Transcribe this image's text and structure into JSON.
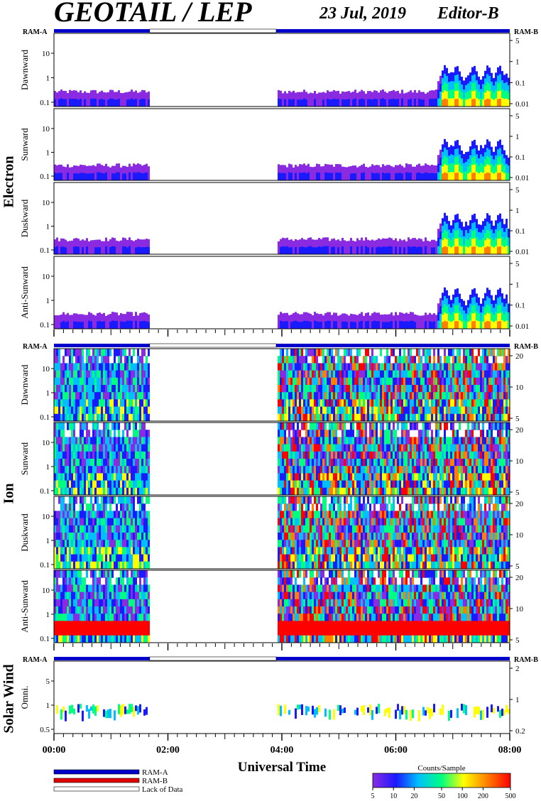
{
  "header": {
    "title": "GEOTAIL / LEP",
    "date": "23 Jul, 2019",
    "editor": "Editor-B"
  },
  "status_labels": {
    "left": "RAM-A",
    "right": "RAM-B"
  },
  "groups": [
    {
      "label": "Electron"
    },
    {
      "label": "Ion"
    },
    {
      "label": "Solar Wind"
    }
  ],
  "panels": [
    {
      "id": "e-dawn",
      "group": "Electron",
      "label": "Dawnward",
      "left_ticks": [
        "10",
        "1",
        "0.1"
      ],
      "right_ticks": [
        "5",
        "1",
        "0.1",
        "0.01"
      ]
    },
    {
      "id": "e-sun",
      "group": "Electron",
      "label": "Sunward",
      "left_ticks": [
        "10",
        "1",
        "0.1"
      ],
      "right_ticks": [
        "5",
        "1",
        "0.1",
        "0.01"
      ]
    },
    {
      "id": "e-dusk",
      "group": "Electron",
      "label": "Duskward",
      "left_ticks": [
        "10",
        "1",
        "0.1"
      ],
      "right_ticks": [
        "5",
        "1",
        "0.1",
        "0.01"
      ]
    },
    {
      "id": "e-anti",
      "group": "Electron",
      "label": "Anti-Sunward",
      "left_ticks": [
        "10",
        "1",
        "0.1"
      ],
      "right_ticks": [
        "5",
        "1",
        "0.1",
        "0.01"
      ]
    },
    {
      "id": "i-dawn",
      "group": "Ion",
      "label": "Dawnward",
      "left_ticks": [
        "10",
        "1",
        "0.1"
      ],
      "right_ticks": [
        "20",
        "10",
        "5"
      ]
    },
    {
      "id": "i-sun",
      "group": "Ion",
      "label": "Sunward",
      "left_ticks": [
        "10",
        "1",
        "0.1"
      ],
      "right_ticks": [
        "20",
        "10",
        "5"
      ]
    },
    {
      "id": "i-dusk",
      "group": "Ion",
      "label": "Duskward",
      "left_ticks": [
        "10",
        "1",
        "0.1"
      ],
      "right_ticks": [
        "20",
        "10",
        "5"
      ]
    },
    {
      "id": "i-anti",
      "group": "Ion",
      "label": "Anti-Sunward",
      "left_ticks": [
        "10",
        "1",
        "0.1"
      ],
      "right_ticks": [
        "20",
        "10",
        "5"
      ]
    },
    {
      "id": "sw-omni",
      "group": "Solar Wind",
      "label": "Omni.",
      "left_ticks": [
        "5",
        "1",
        "0.5"
      ],
      "right_ticks": [
        "2",
        "1",
        "0.2"
      ]
    }
  ],
  "chart_data": {
    "type": "heatmap",
    "xlabel": "Universal Time",
    "x_ticks": [
      "00:00",
      "02:00",
      "04:00",
      "06:00",
      "08:00"
    ],
    "x_range_hours": [
      0,
      8
    ],
    "data_intervals_hours": [
      [
        0.0,
        1.68
      ],
      [
        3.9,
        8.0
      ]
    ],
    "gap_intervals_hours": [
      [
        1.68,
        3.9
      ]
    ],
    "colorbar": {
      "title": "Counts/Sample",
      "ticks": [
        "5",
        "10",
        "20",
        "50",
        "100",
        "200",
        "500"
      ],
      "range": [
        5,
        500
      ],
      "scale": "log",
      "colors": [
        "#8a2be2",
        "#1a1aff",
        "#00bfff",
        "#00ff80",
        "#ffff00",
        "#ff8000",
        "#ff0000"
      ]
    },
    "electron": {
      "quiet_level_counts": 10,
      "enhancement_hours": [
        6.85,
        7.05,
        7.35,
        7.6,
        7.8
      ]
    },
    "ion": {
      "active_hours": [
        [
          0.0,
          1.68
        ],
        [
          3.9,
          8.0
        ]
      ],
      "anti_sunward_hot_band_counts": 300
    }
  },
  "legend": {
    "items": [
      {
        "label": "RAM-A",
        "color": "#0000cc"
      },
      {
        "label": "RAM-B",
        "color": "#e00000"
      },
      {
        "label": "Lack of Data",
        "color": "#ffffff"
      }
    ]
  }
}
